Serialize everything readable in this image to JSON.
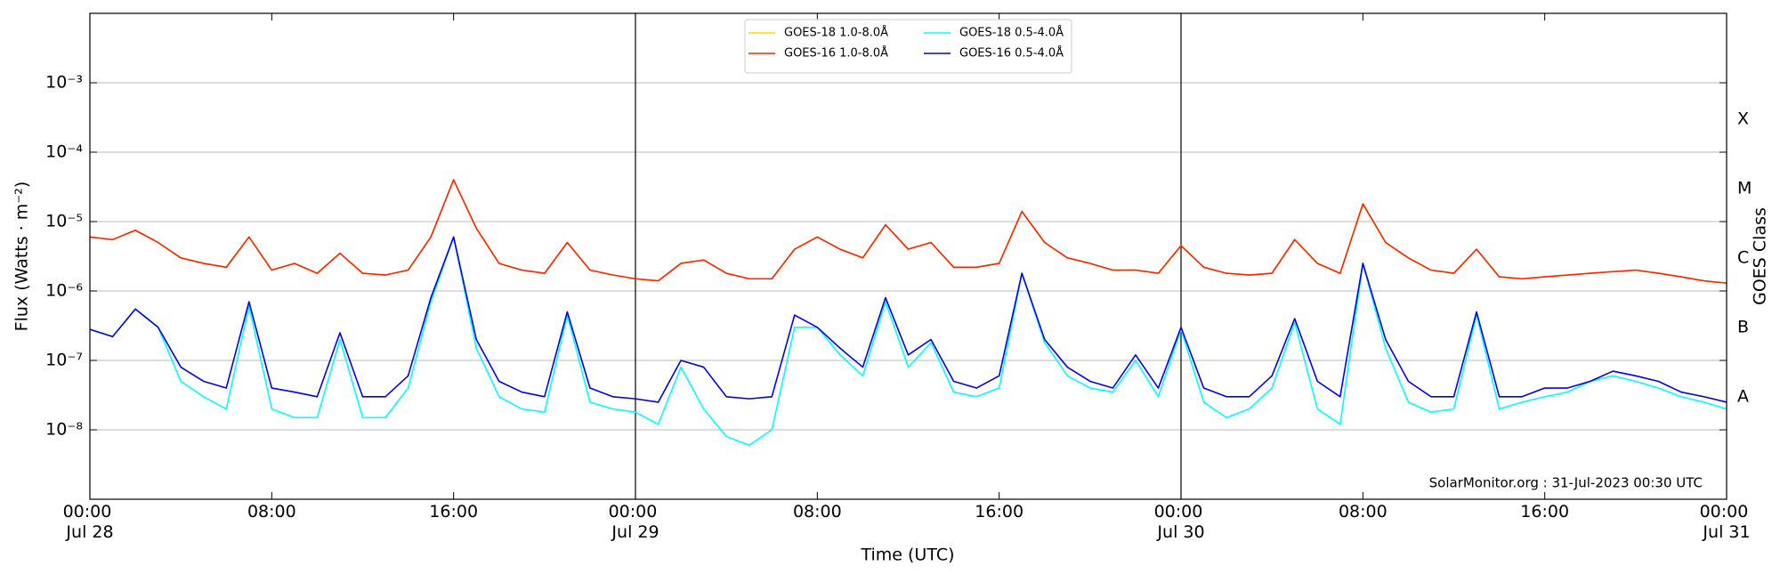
{
  "chart_data": {
    "type": "line",
    "ylabel": "Flux (Watts · m⁻²)",
    "xlabel": "Time (UTC)",
    "y2label": "GOES Class",
    "annotation": "SolarMonitor.org : 31-Jul-2023 00:30 UTC",
    "yscale": "log",
    "grid": true,
    "legend": "upper center",
    "x": [
      "Jul 28 00:00",
      "Jul 28 01:00",
      "Jul 28 02:00",
      "Jul 28 03:00",
      "Jul 28 04:00",
      "Jul 28 05:00",
      "Jul 28 06:00",
      "Jul 28 07:00",
      "Jul 28 08:00",
      "Jul 28 09:00",
      "Jul 28 10:00",
      "Jul 28 11:00",
      "Jul 28 12:00",
      "Jul 28 13:00",
      "Jul 28 14:00",
      "Jul 28 15:00",
      "Jul 28 16:00",
      "Jul 28 17:00",
      "Jul 28 18:00",
      "Jul 28 19:00",
      "Jul 28 20:00",
      "Jul 28 21:00",
      "Jul 28 22:00",
      "Jul 28 23:00",
      "Jul 29 00:00",
      "Jul 29 01:00",
      "Jul 29 02:00",
      "Jul 29 03:00",
      "Jul 29 04:00",
      "Jul 29 05:00",
      "Jul 29 06:00",
      "Jul 29 07:00",
      "Jul 29 08:00",
      "Jul 29 09:00",
      "Jul 29 10:00",
      "Jul 29 11:00",
      "Jul 29 12:00",
      "Jul 29 13:00",
      "Jul 29 14:00",
      "Jul 29 15:00",
      "Jul 29 16:00",
      "Jul 29 17:00",
      "Jul 29 18:00",
      "Jul 29 19:00",
      "Jul 29 20:00",
      "Jul 29 21:00",
      "Jul 29 22:00",
      "Jul 29 23:00",
      "Jul 30 00:00",
      "Jul 30 01:00",
      "Jul 30 02:00",
      "Jul 30 03:00",
      "Jul 30 04:00",
      "Jul 30 05:00",
      "Jul 30 06:00",
      "Jul 30 07:00",
      "Jul 30 08:00",
      "Jul 30 09:00",
      "Jul 30 10:00",
      "Jul 30 11:00",
      "Jul 30 12:00",
      "Jul 30 13:00",
      "Jul 30 14:00",
      "Jul 30 15:00",
      "Jul 30 16:00",
      "Jul 30 17:00",
      "Jul 30 18:00",
      "Jul 30 19:00",
      "Jul 30 20:00",
      "Jul 30 21:00",
      "Jul 30 22:00",
      "Jul 30 23:00",
      "Jul 31 00:00"
    ],
    "series": [
      {
        "name": "GOES-18 1.0-8.0Å",
        "color": "#ffd700",
        "values": [
          6e-06,
          5.5e-06,
          7.5e-06,
          5e-06,
          3e-06,
          2.5e-06,
          2.2e-06,
          6e-06,
          2e-06,
          2.5e-06,
          1.8e-06,
          3.5e-06,
          1.8e-06,
          1.7e-06,
          2e-06,
          6e-06,
          4e-05,
          8e-06,
          2.5e-06,
          2e-06,
          1.8e-06,
          5e-06,
          2e-06,
          1.7e-06,
          1.5e-06,
          1.4e-06,
          2.5e-06,
          2.8e-06,
          1.8e-06,
          1.5e-06,
          1.5e-06,
          4e-06,
          6e-06,
          4e-06,
          3e-06,
          9e-06,
          4e-06,
          5e-06,
          2.2e-06,
          2.2e-06,
          2.5e-06,
          1.4e-05,
          5e-06,
          3e-06,
          2.5e-06,
          2e-06,
          2e-06,
          1.8e-06,
          4.5e-06,
          2.2e-06,
          1.8e-06,
          1.7e-06,
          1.8e-06,
          5.5e-06,
          2.5e-06,
          1.8e-06,
          1.8e-05,
          5e-06,
          3e-06,
          2e-06,
          1.8e-06,
          4e-06,
          1.6e-06,
          1.5e-06,
          1.6e-06,
          1.7e-06,
          1.8e-06,
          1.9e-06,
          2e-06,
          1.8e-06,
          1.6e-06,
          1.4e-06,
          1.3e-06
        ]
      },
      {
        "name": "GOES-16 1.0-8.0Å",
        "color": "#ff2200",
        "values": [
          6e-06,
          5.5e-06,
          7.5e-06,
          5e-06,
          3e-06,
          2.5e-06,
          2.2e-06,
          6e-06,
          2e-06,
          2.5e-06,
          1.8e-06,
          3.5e-06,
          1.8e-06,
          1.7e-06,
          2e-06,
          6e-06,
          4e-05,
          8e-06,
          2.5e-06,
          2e-06,
          1.8e-06,
          5e-06,
          2e-06,
          1.7e-06,
          1.5e-06,
          1.4e-06,
          2.5e-06,
          2.8e-06,
          1.8e-06,
          1.5e-06,
          1.5e-06,
          4e-06,
          6e-06,
          4e-06,
          3e-06,
          9e-06,
          4e-06,
          5e-06,
          2.2e-06,
          2.2e-06,
          2.5e-06,
          1.4e-05,
          5e-06,
          3e-06,
          2.5e-06,
          2e-06,
          2e-06,
          1.8e-06,
          4.5e-06,
          2.2e-06,
          1.8e-06,
          1.7e-06,
          1.8e-06,
          5.5e-06,
          2.5e-06,
          1.8e-06,
          1.8e-05,
          5e-06,
          3e-06,
          2e-06,
          1.8e-06,
          4e-06,
          1.6e-06,
          1.5e-06,
          1.6e-06,
          1.7e-06,
          1.8e-06,
          1.9e-06,
          2e-06,
          1.8e-06,
          1.6e-06,
          1.4e-06,
          1.3e-06
        ]
      },
      {
        "name": "GOES-18 0.5-4.0Å",
        "color": "#00ffff",
        "values": [
          2.8e-07,
          2.2e-07,
          5.5e-07,
          3e-07,
          5e-08,
          3e-08,
          2e-08,
          6e-07,
          2e-08,
          1.5e-08,
          1.5e-08,
          2e-07,
          1.5e-08,
          1.5e-08,
          4e-08,
          7e-07,
          6e-06,
          1.5e-07,
          3e-08,
          2e-08,
          1.8e-08,
          4.5e-07,
          2.5e-08,
          2e-08,
          1.8e-08,
          1.2e-08,
          8e-08,
          2e-08,
          8e-09,
          6e-09,
          1e-08,
          3e-07,
          3e-07,
          1.2e-07,
          6e-08,
          7e-07,
          8e-08,
          1.8e-07,
          3.5e-08,
          3e-08,
          4e-08,
          1.8e-06,
          1.8e-07,
          6e-08,
          4e-08,
          3.5e-08,
          1e-07,
          3e-08,
          2.8e-07,
          2.5e-08,
          1.5e-08,
          2e-08,
          4e-08,
          3.5e-07,
          2e-08,
          1.2e-08,
          2.5e-06,
          1.5e-07,
          2.5e-08,
          1.8e-08,
          2e-08,
          4.5e-07,
          2e-08,
          2.5e-08,
          3e-08,
          3.5e-08,
          5e-08,
          6e-08,
          5e-08,
          4e-08,
          3e-08,
          2.5e-08,
          2e-08
        ]
      },
      {
        "name": "GOES-16 0.5-4.0Å",
        "color": "#0000ee",
        "values": [
          2.8e-07,
          2.2e-07,
          5.5e-07,
          3e-07,
          8e-08,
          5e-08,
          4e-08,
          7e-07,
          4e-08,
          3.5e-08,
          3e-08,
          2.5e-07,
          3e-08,
          3e-08,
          6e-08,
          8e-07,
          6e-06,
          2e-07,
          5e-08,
          3.5e-08,
          3e-08,
          5e-07,
          4e-08,
          3e-08,
          2.8e-08,
          2.5e-08,
          1e-07,
          8e-08,
          3e-08,
          2.8e-08,
          3e-08,
          4.5e-07,
          3e-07,
          1.5e-07,
          8e-08,
          8e-07,
          1.2e-07,
          2e-07,
          5e-08,
          4e-08,
          6e-08,
          1.8e-06,
          2e-07,
          8e-08,
          5e-08,
          4e-08,
          1.2e-07,
          4e-08,
          3e-07,
          4e-08,
          3e-08,
          3e-08,
          6e-08,
          4e-07,
          5e-08,
          3e-08,
          2.5e-06,
          2e-07,
          5e-08,
          3e-08,
          3e-08,
          5e-07,
          3e-08,
          3e-08,
          4e-08,
          4e-08,
          5e-08,
          7e-08,
          6e-08,
          5e-08,
          3.5e-08,
          3e-08,
          2.5e-08
        ]
      }
    ],
    "xlim": [
      "Jul 28 00:00",
      "Jul 31 00:00"
    ],
    "xticks": [
      {
        "value": "Jul 28 00:00",
        "label": "00:00\nJul 28"
      },
      {
        "value": "Jul 28 08:00",
        "label": "08:00"
      },
      {
        "value": "Jul 28 16:00",
        "label": "16:00"
      },
      {
        "value": "Jul 29 00:00",
        "label": "00:00\nJul 29"
      },
      {
        "value": "Jul 29 08:00",
        "label": "08:00"
      },
      {
        "value": "Jul 29 16:00",
        "label": "16:00"
      },
      {
        "value": "Jul 30 00:00",
        "label": "00:00\nJul 30"
      },
      {
        "value": "Jul 30 08:00",
        "label": "08:00"
      },
      {
        "value": "Jul 30 16:00",
        "label": "16:00"
      },
      {
        "value": "Jul 31 00:00",
        "label": "00:00\nJul 31"
      }
    ],
    "ylim": [
      1e-09,
      0.01
    ],
    "yticks": [
      {
        "value": 1e-08,
        "label": "10⁻⁸"
      },
      {
        "value": 1e-07,
        "label": "10⁻⁷"
      },
      {
        "value": 1e-06,
        "label": "10⁻⁶"
      },
      {
        "value": 1e-05,
        "label": "10⁻⁵"
      },
      {
        "value": 0.0001,
        "label": "10⁻⁴"
      },
      {
        "value": 0.001,
        "label": "10⁻³"
      }
    ],
    "y2lim": [
      1e-09,
      0.01
    ],
    "y2ticks": [
      {
        "value": 3e-08,
        "label": "A"
      },
      {
        "value": 3e-07,
        "label": "B"
      },
      {
        "value": 3e-06,
        "label": "C"
      },
      {
        "value": 3e-05,
        "label": "M"
      },
      {
        "value": 0.0003,
        "label": "X"
      }
    ]
  }
}
